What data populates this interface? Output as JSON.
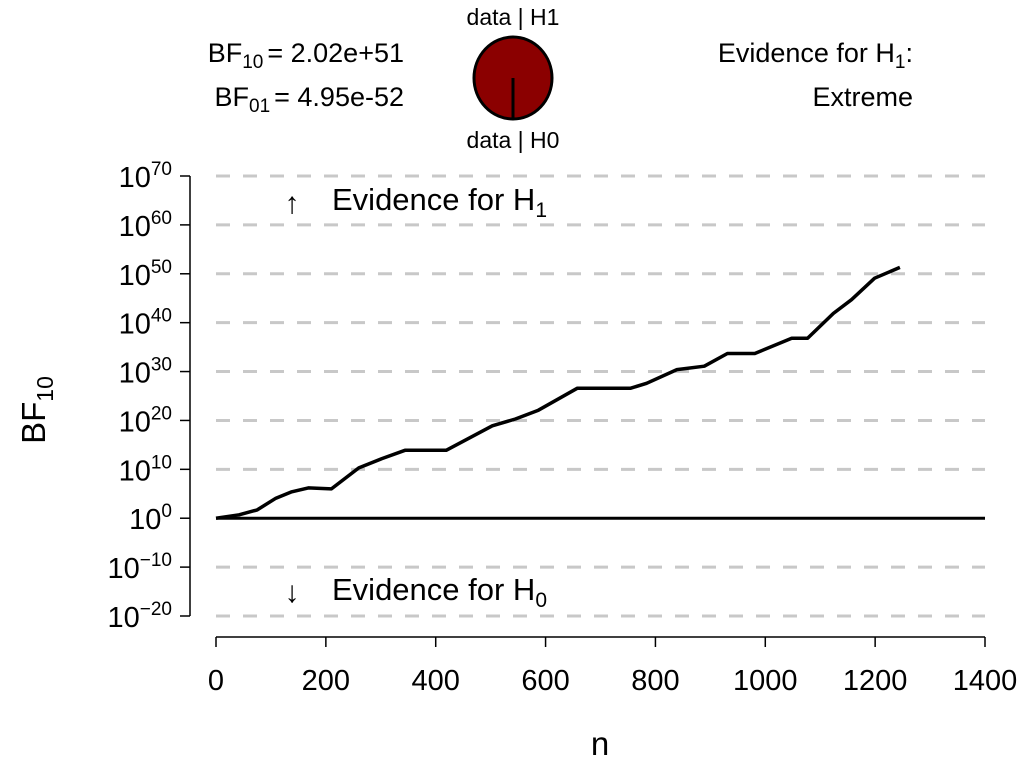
{
  "header": {
    "bf10_label": "BF",
    "bf10_sub": "10",
    "bf10_value": "= 2.02e+51",
    "bf01_label": "BF",
    "bf01_sub": "01",
    "bf01_value": "= 4.95e-52",
    "pie_top_label": "data | H1",
    "pie_bottom_label": "data | H0",
    "pie_h1_fraction": 1.0,
    "evidence_line1": "Evidence for H",
    "evidence_sub": "1",
    "evidence_colon": ":",
    "evidence_line2": "Extreme"
  },
  "colors": {
    "pie_fill": "#8B0000",
    "grid": "#c8c8c8",
    "line": "#000000"
  },
  "chart_data": {
    "type": "line",
    "title": "",
    "xlabel": "n",
    "ylabel": "BF",
    "ylabel_sub": "10",
    "xlim": [
      0,
      1400
    ],
    "ylim_log10": [
      -20,
      70
    ],
    "x_ticks": [
      0,
      200,
      400,
      600,
      800,
      1000,
      1200,
      1400
    ],
    "y_ticks_log10": [
      "70",
      "60",
      "50",
      "40",
      "30",
      "20",
      "10",
      "0",
      "−10",
      "−20"
    ],
    "y_tick_base": "10",
    "grid": "dashed horizontal",
    "reference_line_log10": 0,
    "annotations": {
      "up_arrow": "↑",
      "up_text": "Evidence for H",
      "up_sub": "1",
      "down_arrow": "↓",
      "down_text": "Evidence for H",
      "down_sub": "0"
    },
    "series": [
      {
        "name": "BF10",
        "x": [
          0,
          42,
          75,
          109,
          138,
          168,
          210,
          260,
          302,
          344,
          419,
          503,
          545,
          587,
          658,
          755,
          784,
          839,
          889,
          931,
          981,
          1048,
          1077,
          1124,
          1157,
          1199,
          1245
        ],
        "log10_y": [
          0,
          0.7,
          1.7,
          4.1,
          5.4,
          6.2,
          6.0,
          10.3,
          12.2,
          13.9,
          13.9,
          18.9,
          20.3,
          22.1,
          26.6,
          26.6,
          27.6,
          30.4,
          31.1,
          33.7,
          33.7,
          36.8,
          36.8,
          41.9,
          44.7,
          49.1,
          51.3
        ]
      }
    ]
  }
}
